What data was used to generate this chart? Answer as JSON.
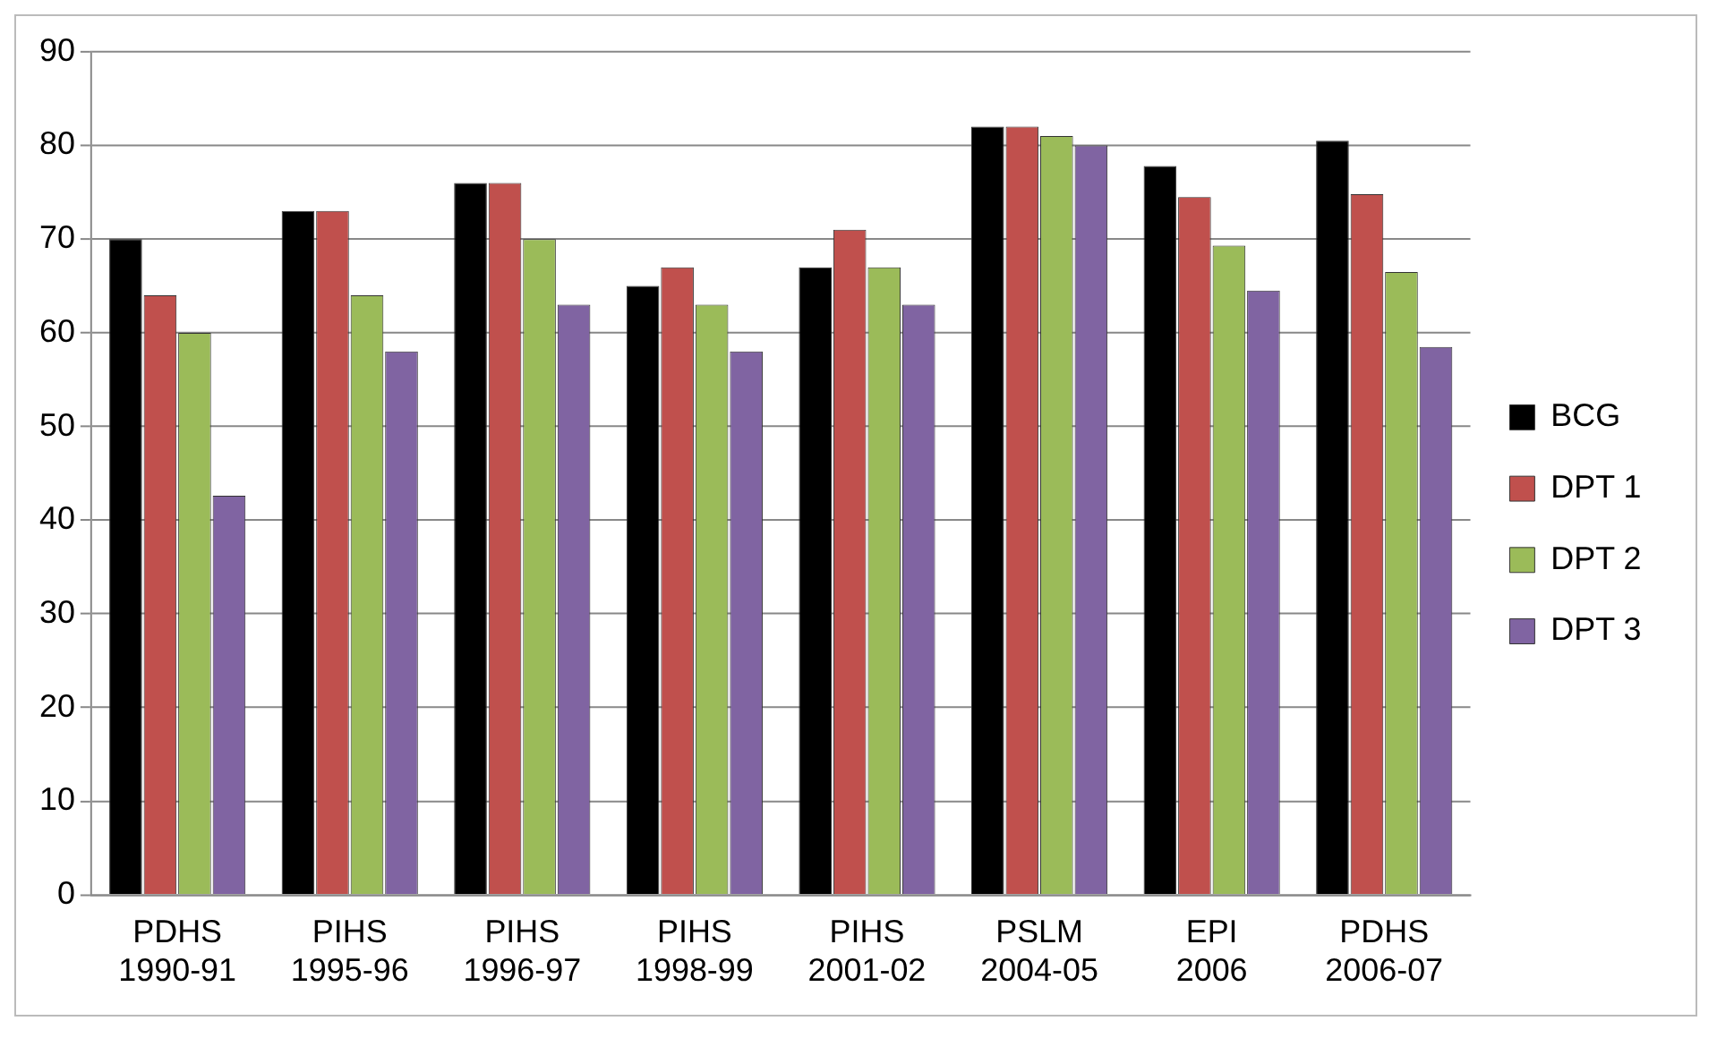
{
  "chart_data": {
    "type": "bar",
    "categories": [
      "PDHS 1990-91",
      "PIHS 1995-96",
      "PIHS 1996-97",
      "PIHS 1998-99",
      "PIHS 2001-02",
      "PSLM 2004-05",
      "EPI 2006",
      "PDHS 2006-07"
    ],
    "series": [
      {
        "name": "BCG",
        "color": "#000000",
        "values": [
          70,
          73,
          76,
          65,
          67,
          82,
          77.8,
          80.5
        ]
      },
      {
        "name": "DPT 1",
        "color": "#c0504d",
        "values": [
          64,
          73,
          76,
          67,
          71,
          82,
          74.5,
          74.8
        ]
      },
      {
        "name": "DPT 2",
        "color": "#9bbb59",
        "values": [
          60,
          64,
          70,
          63,
          67,
          81,
          69.3,
          66.5
        ]
      },
      {
        "name": "DPT 3",
        "color": "#8064a2",
        "values": [
          42.6,
          58,
          63,
          58,
          63,
          80,
          64.5,
          58.5
        ]
      }
    ],
    "ylim": [
      0,
      90
    ],
    "yticks": [
      0,
      10,
      20,
      30,
      40,
      50,
      60,
      70,
      80,
      90
    ],
    "grid": "y",
    "legend": "right"
  }
}
